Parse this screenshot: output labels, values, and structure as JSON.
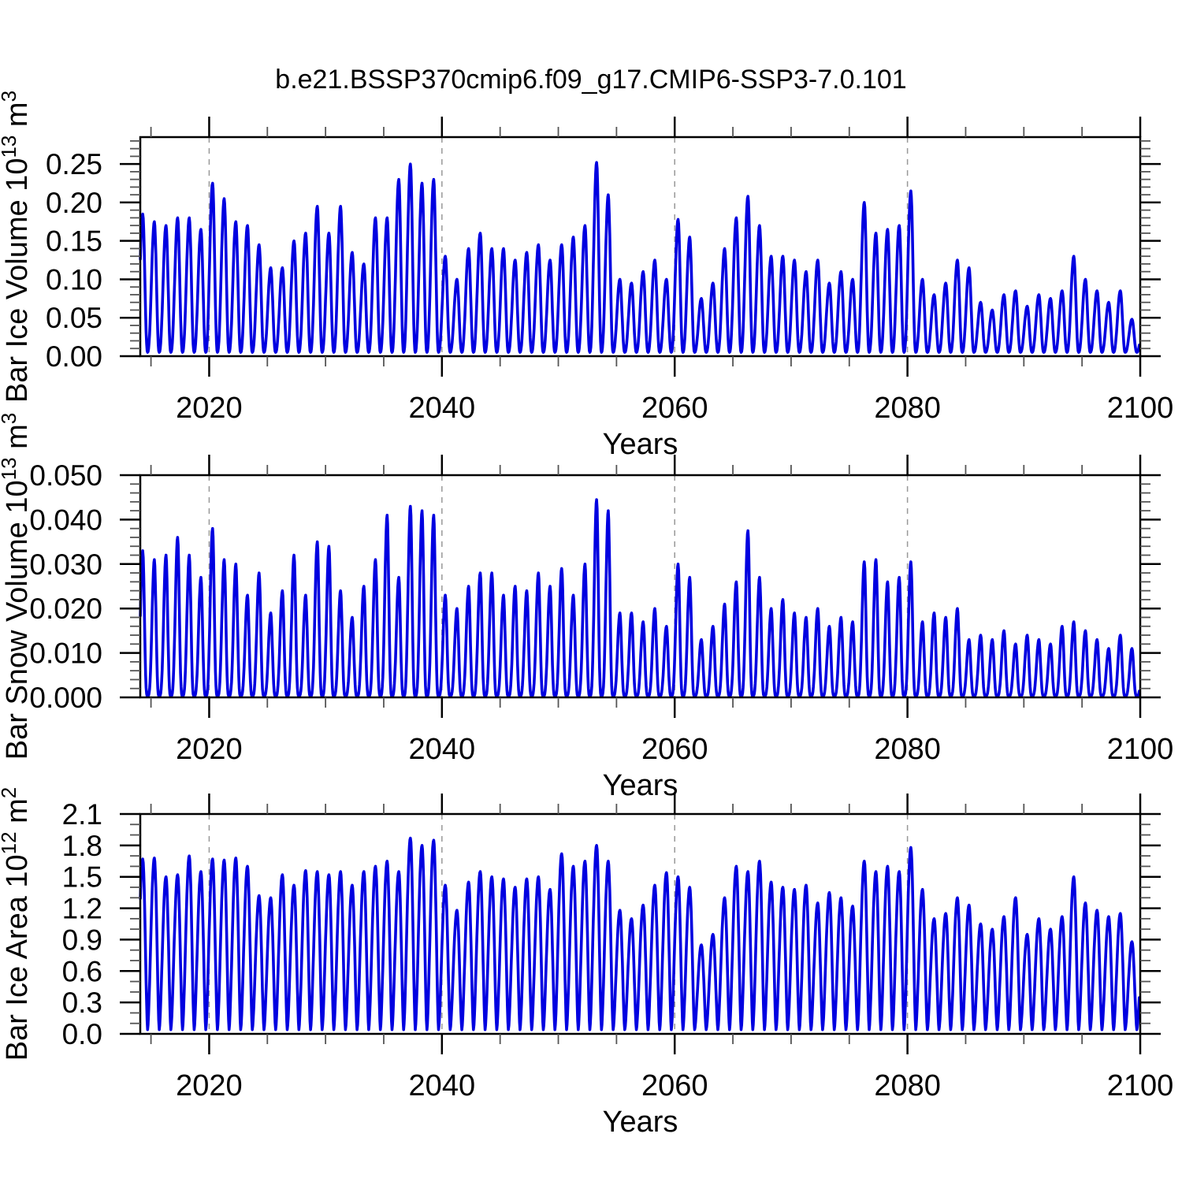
{
  "title": "b.e21.BSSP370cmip6.f09_g17.CMIP6-SSP3-7.0.101",
  "colors": {
    "line": "#0000e0",
    "frame": "#000000",
    "major_tick": "#000000",
    "minor_tick": "#555555",
    "gridline": "#999999",
    "text": "#000000",
    "background": "#ffffff"
  },
  "chart_data": [
    {
      "type": "line",
      "panel": "ice-volume",
      "ylabel_text": "Bar Ice Volume 10^13 m^3",
      "ylabel_segments": [
        {
          "text": "Bar Ice Volume 10"
        },
        {
          "text": "13",
          "sup": true
        },
        {
          "text": " m"
        },
        {
          "text": "3",
          "sup": true
        }
      ],
      "xlabel": "Years",
      "x_range": [
        2014.08,
        2100
      ],
      "y_range": [
        0,
        0.285
      ],
      "x_major_ticks": [
        2020,
        2040,
        2060,
        2080,
        2100
      ],
      "x_tick_labels": [
        "2020",
        "2040",
        "2060",
        "2080",
        "2100"
      ],
      "x_minor_interval": 5,
      "y_major_interval": 0.05,
      "y_minor_interval": 0.01,
      "y_tick_labels": [
        "0.00",
        "0.05",
        "0.10",
        "0.15",
        "0.20",
        "0.25"
      ],
      "grid_x": [
        2020,
        2040,
        2060,
        2080
      ],
      "grid_on": true,
      "legend": "none",
      "series": [
        {
          "name": "Barents ice volume",
          "units": "10^13 m^3",
          "year_start": 2014,
          "annual_cycle": {
            "peak_month": "Apr",
            "trough_month": "Sep",
            "annual_min": 0.005,
            "shape_power": 1.2
          },
          "annual_max": [
            0.185,
            0.175,
            0.17,
            0.18,
            0.18,
            0.165,
            0.225,
            0.205,
            0.175,
            0.17,
            0.145,
            0.115,
            0.115,
            0.15,
            0.16,
            0.195,
            0.16,
            0.195,
            0.135,
            0.12,
            0.18,
            0.18,
            0.23,
            0.25,
            0.225,
            0.23,
            0.13,
            0.1,
            0.14,
            0.16,
            0.14,
            0.14,
            0.125,
            0.135,
            0.145,
            0.125,
            0.145,
            0.155,
            0.17,
            0.252,
            0.21,
            0.1,
            0.095,
            0.11,
            0.125,
            0.1,
            0.178,
            0.155,
            0.075,
            0.095,
            0.14,
            0.18,
            0.208,
            0.17,
            0.13,
            0.13,
            0.125,
            0.11,
            0.125,
            0.095,
            0.11,
            0.1,
            0.2,
            0.16,
            0.165,
            0.17,
            0.215,
            0.1,
            0.08,
            0.095,
            0.125,
            0.115,
            0.07,
            0.06,
            0.08,
            0.085,
            0.065,
            0.08,
            0.075,
            0.085,
            0.13,
            0.1,
            0.085,
            0.07,
            0.085,
            0.048
          ]
        }
      ]
    },
    {
      "type": "line",
      "panel": "snow-volume",
      "ylabel_text": "Bar Snow Volume 10^13 m^3",
      "ylabel_segments": [
        {
          "text": "Bar Snow Volume 10"
        },
        {
          "text": "13",
          "sup": true
        },
        {
          "text": " m"
        },
        {
          "text": "3",
          "sup": true
        }
      ],
      "xlabel": "Years",
      "x_range": [
        2014.08,
        2100
      ],
      "y_range": [
        0,
        0.05
      ],
      "x_major_ticks": [
        2020,
        2040,
        2060,
        2080,
        2100
      ],
      "x_tick_labels": [
        "2020",
        "2040",
        "2060",
        "2080",
        "2100"
      ],
      "x_minor_interval": 5,
      "y_major_interval": 0.01,
      "y_minor_interval": 0.002,
      "y_tick_labels": [
        "0.000",
        "0.010",
        "0.020",
        "0.030",
        "0.040",
        "0.050"
      ],
      "grid_x": [
        2020,
        2040,
        2060,
        2080
      ],
      "grid_on": true,
      "legend": "none",
      "series": [
        {
          "name": "Barents snow volume",
          "units": "10^13 m^3",
          "year_start": 2014,
          "annual_cycle": {
            "peak_month": "Apr",
            "trough_month": "Sep",
            "annual_min": 0.0003,
            "shape_power": 1.8
          },
          "annual_max": [
            0.033,
            0.031,
            0.032,
            0.036,
            0.032,
            0.027,
            0.038,
            0.031,
            0.03,
            0.023,
            0.028,
            0.019,
            0.024,
            0.032,
            0.023,
            0.035,
            0.034,
            0.024,
            0.018,
            0.025,
            0.031,
            0.041,
            0.027,
            0.043,
            0.042,
            0.041,
            0.023,
            0.02,
            0.025,
            0.028,
            0.028,
            0.023,
            0.025,
            0.024,
            0.028,
            0.025,
            0.029,
            0.023,
            0.03,
            0.0445,
            0.042,
            0.019,
            0.019,
            0.017,
            0.02,
            0.016,
            0.03,
            0.027,
            0.013,
            0.016,
            0.021,
            0.026,
            0.0375,
            0.027,
            0.02,
            0.022,
            0.019,
            0.018,
            0.02,
            0.016,
            0.018,
            0.017,
            0.0305,
            0.031,
            0.026,
            0.027,
            0.0305,
            0.017,
            0.019,
            0.018,
            0.02,
            0.013,
            0.014,
            0.013,
            0.015,
            0.012,
            0.014,
            0.013,
            0.012,
            0.016,
            0.017,
            0.015,
            0.013,
            0.011,
            0.014,
            0.011
          ]
        }
      ]
    },
    {
      "type": "line",
      "panel": "ice-area",
      "ylabel_text": "Bar Ice Area 10^12 m^2",
      "ylabel_segments": [
        {
          "text": "Bar Ice Area 10"
        },
        {
          "text": "12",
          "sup": true
        },
        {
          "text": " m"
        },
        {
          "text": "2",
          "sup": true
        }
      ],
      "xlabel": "Years",
      "x_range": [
        2014.08,
        2100
      ],
      "y_range": [
        0,
        2.1
      ],
      "x_major_ticks": [
        2020,
        2040,
        2060,
        2080,
        2100
      ],
      "x_tick_labels": [
        "2020",
        "2040",
        "2060",
        "2080",
        "2100"
      ],
      "x_minor_interval": 5,
      "y_major_interval": 0.3,
      "y_minor_interval": 0.1,
      "y_tick_labels": [
        "0.0",
        "0.3",
        "0.6",
        "0.9",
        "1.2",
        "1.5",
        "1.8",
        "2.1"
      ],
      "grid_x": [
        2020,
        2040,
        2060,
        2080
      ],
      "grid_on": true,
      "legend": "none",
      "series": [
        {
          "name": "Barents ice area",
          "units": "10^12 m^2",
          "year_start": 2014,
          "annual_cycle": {
            "peak_month": "Apr",
            "trough_month": "Sep",
            "annual_min": 0.04,
            "shape_power": 0.8
          },
          "annual_max": [
            1.67,
            1.68,
            1.5,
            1.52,
            1.7,
            1.55,
            1.67,
            1.66,
            1.68,
            1.6,
            1.32,
            1.3,
            1.52,
            1.42,
            1.56,
            1.55,
            1.52,
            1.55,
            1.42,
            1.55,
            1.6,
            1.65,
            1.55,
            1.87,
            1.8,
            1.85,
            1.42,
            1.18,
            1.45,
            1.55,
            1.5,
            1.48,
            1.4,
            1.48,
            1.5,
            1.38,
            1.72,
            1.6,
            1.65,
            1.8,
            1.65,
            1.18,
            1.1,
            1.23,
            1.42,
            1.54,
            1.5,
            1.4,
            0.85,
            0.95,
            1.3,
            1.6,
            1.55,
            1.65,
            1.45,
            1.4,
            1.38,
            1.42,
            1.25,
            1.35,
            1.3,
            1.22,
            1.65,
            1.55,
            1.6,
            1.55,
            1.78,
            1.38,
            1.1,
            1.15,
            1.3,
            1.23,
            1.05,
            1.0,
            1.12,
            1.3,
            0.95,
            1.1,
            1.0,
            1.12,
            1.5,
            1.25,
            1.18,
            1.12,
            1.15,
            0.88
          ]
        }
      ]
    }
  ]
}
